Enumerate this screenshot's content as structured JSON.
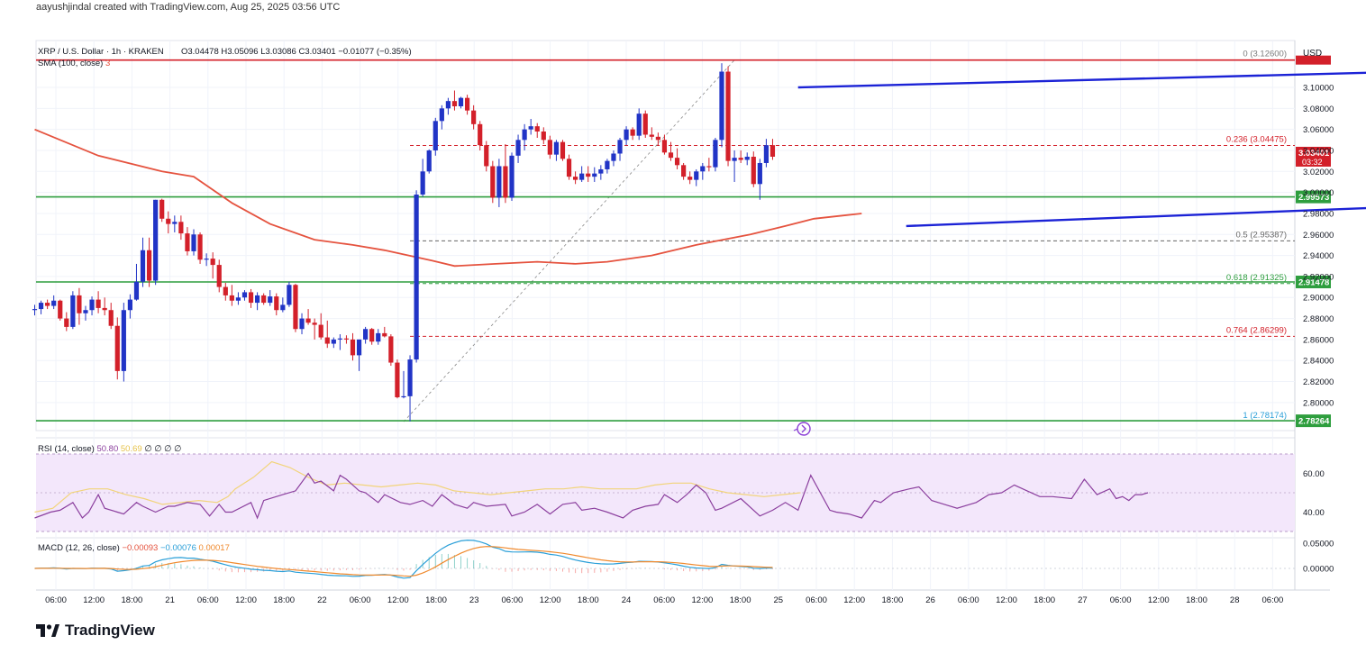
{
  "attribution": "aayushjindal created with TradingView.com, Aug 25, 2025 03:56 UTC",
  "brand": "TradingView",
  "header": {
    "symbol": "XRP / U.S. Dollar · 1h · KRAKEN",
    "open": "O3.04478",
    "high": "H3.05096",
    "low": "L3.03086",
    "close": "C3.03401",
    "change": "−0.01077 (−0.35%)",
    "sma_label": "SMA (100, close)",
    "sma_value": "3"
  },
  "currency": "USD",
  "colors": {
    "up": "#2134c6",
    "down": "#d3202a",
    "sma": "#e5533f",
    "trendline": "#1b22d6",
    "support": "#2e9e3e",
    "resistance": "#d3202a",
    "rsi": "#8b3f9e",
    "rsi_ma": "#f2d47a",
    "macd": "#2a9fd8",
    "signal": "#f08a2e"
  },
  "chart_data": {
    "type": "candlestick",
    "timeframe": "1h",
    "x_ticks": [
      "06:00",
      "12:00",
      "18:00",
      "21",
      "06:00",
      "12:00",
      "18:00",
      "22",
      "06:00",
      "12:00",
      "18:00",
      "23",
      "06:00",
      "12:00",
      "18:00",
      "24",
      "06:00",
      "12:00",
      "18:00",
      "25",
      "06:00",
      "12:00",
      "18:00",
      "26",
      "06:00",
      "12:00",
      "18:00",
      "27",
      "06:00",
      "12:00",
      "18:00",
      "28",
      "06:00"
    ],
    "y_ticks": [
      "3.10000",
      "3.08000",
      "3.06000",
      "3.04000",
      "3.02000",
      "3.00000",
      "2.98000",
      "2.96000",
      "2.94000",
      "2.92000",
      "2.90000",
      "2.88000",
      "2.86000",
      "2.84000",
      "2.82000",
      "2.80000"
    ],
    "price_range": [
      2.7733,
      3.1446
    ],
    "candles": [
      [
        2.888,
        2.893,
        2.883,
        2.889
      ],
      [
        2.889,
        2.897,
        2.884,
        2.895
      ],
      [
        2.895,
        2.898,
        2.889,
        2.892
      ],
      [
        2.892,
        2.902,
        2.889,
        2.897
      ],
      [
        2.897,
        2.898,
        2.878,
        2.88
      ],
      [
        2.88,
        2.886,
        2.868,
        2.872
      ],
      [
        2.872,
        2.906,
        2.87,
        2.902
      ],
      [
        2.902,
        2.909,
        2.874,
        2.885
      ],
      [
        2.885,
        2.892,
        2.878,
        2.888
      ],
      [
        2.888,
        2.901,
        2.883,
        2.898
      ],
      [
        2.898,
        2.906,
        2.885,
        2.89
      ],
      [
        2.89,
        2.9,
        2.883,
        2.888
      ],
      [
        2.888,
        2.895,
        2.87,
        2.873
      ],
      [
        2.873,
        2.881,
        2.822,
        2.83
      ],
      [
        2.83,
        2.895,
        2.82,
        2.888
      ],
      [
        2.888,
        2.903,
        2.88,
        2.898
      ],
      [
        2.898,
        2.932,
        2.897,
        2.915
      ],
      [
        2.915,
        2.957,
        2.91,
        2.945
      ],
      [
        2.945,
        2.957,
        2.91,
        2.916
      ],
      [
        2.916,
        2.993,
        2.912,
        2.993
      ],
      [
        2.993,
        2.994,
        2.972,
        2.975
      ],
      [
        2.975,
        2.982,
        2.961,
        2.97
      ],
      [
        2.97,
        2.978,
        2.962,
        2.972
      ],
      [
        2.972,
        2.978,
        2.955,
        2.961
      ],
      [
        2.961,
        2.967,
        2.94,
        2.944
      ],
      [
        2.944,
        2.965,
        2.94,
        2.96
      ],
      [
        2.96,
        2.962,
        2.932,
        2.936
      ],
      [
        2.936,
        2.942,
        2.93,
        2.937
      ],
      [
        2.937,
        2.943,
        2.918,
        2.931
      ],
      [
        2.931,
        2.936,
        2.905,
        2.91
      ],
      [
        2.91,
        2.914,
        2.897,
        2.902
      ],
      [
        2.902,
        2.912,
        2.892,
        2.897
      ],
      [
        2.897,
        2.905,
        2.893,
        2.9
      ],
      [
        2.9,
        2.907,
        2.897,
        2.905
      ],
      [
        2.905,
        2.908,
        2.89,
        2.895
      ],
      [
        2.895,
        2.905,
        2.888,
        2.902
      ],
      [
        2.902,
        2.904,
        2.893,
        2.895
      ],
      [
        2.895,
        2.907,
        2.892,
        2.901
      ],
      [
        2.901,
        2.904,
        2.883,
        2.888
      ],
      [
        2.888,
        2.9,
        2.886,
        2.893
      ],
      [
        2.893,
        2.915,
        2.891,
        2.912
      ],
      [
        2.912,
        2.913,
        2.867,
        2.87
      ],
      [
        2.87,
        2.885,
        2.865,
        2.88
      ],
      [
        2.88,
        2.889,
        2.874,
        2.876
      ],
      [
        2.876,
        2.88,
        2.86,
        2.874
      ],
      [
        2.874,
        2.885,
        2.86,
        2.862
      ],
      [
        2.862,
        2.878,
        2.852,
        2.856
      ],
      [
        2.856,
        2.862,
        2.852,
        2.86
      ],
      [
        2.86,
        2.865,
        2.85,
        2.861
      ],
      [
        2.861,
        2.864,
        2.856,
        2.86
      ],
      [
        2.86,
        2.866,
        2.84,
        2.845
      ],
      [
        2.845,
        2.86,
        2.83,
        2.86
      ],
      [
        2.86,
        2.872,
        2.856,
        2.87
      ],
      [
        2.87,
        2.871,
        2.855,
        2.858
      ],
      [
        2.858,
        2.87,
        2.855,
        2.866
      ],
      [
        2.866,
        2.872,
        2.862,
        2.863
      ],
      [
        2.863,
        2.865,
        2.835,
        2.838
      ],
      [
        2.838,
        2.841,
        2.804,
        2.805
      ],
      [
        2.805,
        2.83,
        2.804,
        2.806
      ],
      [
        2.806,
        2.845,
        2.782,
        2.841
      ],
      [
        2.841,
        3.002,
        2.838,
        2.998
      ],
      [
        2.998,
        3.032,
        2.996,
        3.02
      ],
      [
        3.02,
        3.041,
        3.018,
        3.04
      ],
      [
        3.04,
        3.071,
        3.035,
        3.068
      ],
      [
        3.068,
        3.083,
        3.06,
        3.08
      ],
      [
        3.08,
        3.09,
        3.074,
        3.087
      ],
      [
        3.087,
        3.097,
        3.078,
        3.082
      ],
      [
        3.082,
        3.091,
        3.08,
        3.09
      ],
      [
        3.09,
        3.093,
        3.074,
        3.078
      ],
      [
        3.078,
        3.083,
        3.06,
        3.065
      ],
      [
        3.065,
        3.068,
        3.04,
        3.045
      ],
      [
        3.045,
        3.049,
        3.02,
        3.025
      ],
      [
        3.025,
        3.03,
        2.99,
        2.995
      ],
      [
        2.995,
        3.032,
        2.986,
        3.025
      ],
      [
        3.025,
        3.046,
        2.99,
        2.995
      ],
      [
        2.995,
        3.038,
        2.992,
        3.035
      ],
      [
        3.035,
        3.055,
        3.028,
        3.05
      ],
      [
        3.05,
        3.065,
        3.04,
        3.06
      ],
      [
        3.06,
        3.07,
        3.055,
        3.063
      ],
      [
        3.063,
        3.066,
        3.052,
        3.058
      ],
      [
        3.058,
        3.062,
        3.046,
        3.05
      ],
      [
        3.05,
        3.054,
        3.032,
        3.036
      ],
      [
        3.036,
        3.05,
        3.03,
        3.048
      ],
      [
        3.048,
        3.05,
        3.03,
        3.032
      ],
      [
        3.032,
        3.036,
        3.012,
        3.015
      ],
      [
        3.015,
        3.02,
        3.008,
        3.012
      ],
      [
        3.012,
        3.025,
        3.01,
        3.018
      ],
      [
        3.018,
        3.025,
        3.01,
        3.015
      ],
      [
        3.015,
        3.024,
        3.01,
        3.018
      ],
      [
        3.018,
        3.026,
        3.012,
        3.022
      ],
      [
        3.022,
        3.032,
        3.018,
        3.03
      ],
      [
        3.03,
        3.04,
        3.025,
        3.037
      ],
      [
        3.037,
        3.052,
        3.03,
        3.05
      ],
      [
        3.05,
        3.063,
        3.045,
        3.06
      ],
      [
        3.06,
        3.062,
        3.05,
        3.054
      ],
      [
        3.054,
        3.08,
        3.05,
        3.075
      ],
      [
        3.075,
        3.078,
        3.052,
        3.055
      ],
      [
        3.055,
        3.062,
        3.05,
        3.053
      ],
      [
        3.053,
        3.057,
        3.045,
        3.05
      ],
      [
        3.05,
        3.055,
        3.036,
        3.038
      ],
      [
        3.038,
        3.048,
        3.03,
        3.033
      ],
      [
        3.033,
        3.042,
        3.022,
        3.026
      ],
      [
        3.026,
        3.028,
        3.012,
        3.015
      ],
      [
        3.015,
        3.02,
        3.008,
        3.012
      ],
      [
        3.012,
        3.022,
        3.006,
        3.02
      ],
      [
        3.02,
        3.028,
        3.012,
        3.025
      ],
      [
        3.025,
        3.033,
        3.02,
        3.024
      ],
      [
        3.024,
        3.052,
        3.02,
        3.05
      ],
      [
        3.05,
        3.123,
        3.043,
        3.115
      ],
      [
        3.115,
        3.12,
        3.025,
        3.03
      ],
      [
        3.03,
        3.04,
        3.01,
        3.033
      ],
      [
        3.033,
        3.04,
        3.028,
        3.031
      ],
      [
        3.031,
        3.038,
        3.026,
        3.034
      ],
      [
        3.034,
        3.039,
        3.005,
        3.008
      ],
      [
        3.008,
        3.032,
        2.993,
        3.028
      ],
      [
        3.028,
        3.051,
        3.024,
        3.045
      ],
      [
        3.045,
        3.051,
        3.031,
        3.034
      ]
    ],
    "sma": [
      [
        0,
        3.06
      ],
      [
        20,
        3.035
      ],
      [
        40,
        3.02
      ],
      [
        50,
        3.015
      ],
      [
        62,
        2.99
      ],
      [
        74,
        2.97
      ],
      [
        88,
        2.955
      ],
      [
        100,
        2.95
      ],
      [
        110,
        2.945
      ],
      [
        125,
        2.935
      ],
      [
        132,
        2.93
      ],
      [
        145,
        2.932
      ],
      [
        158,
        2.934
      ],
      [
        170,
        2.932
      ],
      [
        180,
        2.934
      ],
      [
        194,
        2.94
      ],
      [
        208,
        2.95
      ],
      [
        225,
        2.96
      ],
      [
        236,
        2.968
      ],
      [
        245,
        2.975
      ],
      [
        254,
        2.978
      ],
      [
        260,
        2.98
      ]
    ],
    "annotations": {
      "fibonacci": [
        {
          "label": "0 (3.12600)",
          "value": 3.126
        },
        {
          "label": "0.236 (3.04475)",
          "value": 3.04475
        },
        {
          "label": "0.5 (2.95387)",
          "value": 2.95387
        },
        {
          "label": "0.618 (2.91325)",
          "value": 2.91325
        },
        {
          "label": "0.764 (2.86299)",
          "value": 2.86299
        },
        {
          "label": "1 (2.78174)",
          "value": 2.78174
        }
      ],
      "horizontal_lines": [
        {
          "kind": "resistance",
          "value": 3.126,
          "label": ""
        },
        {
          "kind": "support",
          "value": 2.99573,
          "label": "2.99573"
        },
        {
          "kind": "support",
          "value": 2.91478,
          "label": "2.91478"
        },
        {
          "kind": "support",
          "value": 2.78264,
          "label": "2.78264"
        }
      ],
      "price_tag": {
        "value": 3.03401,
        "label": "3.03401",
        "countdown": "03:32"
      },
      "channel": [
        {
          "from": [
            120,
            3.1
          ],
          "to": [
            236,
            3.118
          ]
        },
        {
          "from": [
            137,
            2.968
          ],
          "to": [
            243,
            2.993
          ]
        }
      ]
    }
  },
  "rsi": {
    "label": "RSI (14, close)",
    "values_text": [
      "50.80",
      "50.69",
      "∅",
      "∅",
      "∅",
      "∅"
    ],
    "y_ticks": [
      "60.00",
      "40.00"
    ],
    "band": [
      30,
      70
    ],
    "mid": 50,
    "series": [
      [
        0,
        37
      ],
      [
        5,
        40
      ],
      [
        8,
        41
      ],
      [
        12,
        45
      ],
      [
        15,
        37
      ],
      [
        17,
        40
      ],
      [
        20,
        49
      ],
      [
        22,
        42
      ],
      [
        26,
        40
      ],
      [
        28,
        39
      ],
      [
        32,
        45
      ],
      [
        34,
        43
      ],
      [
        38,
        40
      ],
      [
        42,
        43
      ],
      [
        44,
        43
      ],
      [
        48,
        45
      ],
      [
        52,
        44
      ],
      [
        55,
        38
      ],
      [
        58,
        44
      ],
      [
        60,
        40
      ],
      [
        62,
        40
      ],
      [
        68,
        45
      ],
      [
        70,
        37
      ],
      [
        72,
        46
      ],
      [
        78,
        49
      ],
      [
        82,
        51
      ],
      [
        86,
        60
      ],
      [
        88,
        55
      ],
      [
        90,
        56
      ],
      [
        94,
        51
      ],
      [
        96,
        59
      ],
      [
        98,
        57
      ],
      [
        102,
        51
      ],
      [
        104,
        50
      ],
      [
        108,
        45
      ],
      [
        110,
        49
      ],
      [
        115,
        45
      ],
      [
        118,
        44
      ],
      [
        122,
        46
      ],
      [
        125,
        43
      ],
      [
        128,
        49
      ],
      [
        132,
        44
      ],
      [
        136,
        42
      ],
      [
        138,
        45
      ],
      [
        142,
        43
      ],
      [
        148,
        44
      ],
      [
        150,
        38
      ],
      [
        154,
        40
      ],
      [
        158,
        44
      ],
      [
        162,
        39
      ],
      [
        166,
        44
      ],
      [
        170,
        45
      ],
      [
        172,
        41
      ],
      [
        176,
        42
      ],
      [
        180,
        40
      ],
      [
        185,
        37
      ],
      [
        188,
        41
      ],
      [
        192,
        43
      ],
      [
        196,
        44
      ],
      [
        198,
        49
      ],
      [
        202,
        45
      ],
      [
        205,
        49
      ],
      [
        208,
        54
      ],
      [
        211,
        50
      ],
      [
        214,
        41
      ],
      [
        216,
        42
      ],
      [
        222,
        47
      ],
      [
        228,
        38
      ],
      [
        232,
        41
      ],
      [
        236,
        45
      ],
      [
        240,
        41
      ],
      [
        244,
        59
      ],
      [
        250,
        41
      ],
      [
        252,
        40
      ],
      [
        256,
        39
      ],
      [
        260,
        37
      ],
      [
        264,
        46
      ],
      [
        266,
        45
      ],
      [
        270,
        50
      ],
      [
        275,
        52
      ],
      [
        278,
        53
      ],
      [
        282,
        46
      ],
      [
        286,
        44
      ],
      [
        290,
        42
      ],
      [
        294,
        44
      ],
      [
        296,
        45
      ],
      [
        300,
        49
      ],
      [
        304,
        50
      ],
      [
        308,
        54
      ],
      [
        312,
        51
      ],
      [
        316,
        48
      ],
      [
        320,
        48
      ],
      [
        326,
        47
      ],
      [
        330,
        57
      ],
      [
        334,
        49
      ],
      [
        338,
        52
      ],
      [
        340,
        47
      ],
      [
        342,
        48
      ],
      [
        344,
        46
      ],
      [
        346,
        49
      ],
      [
        348,
        49
      ],
      [
        350,
        50
      ]
    ],
    "ma": [
      [
        0,
        40
      ],
      [
        20,
        42
      ],
      [
        40,
        50
      ],
      [
        60,
        52
      ],
      [
        80,
        52
      ],
      [
        100,
        49
      ],
      [
        120,
        47
      ],
      [
        140,
        44
      ],
      [
        160,
        45
      ],
      [
        180,
        46
      ],
      [
        200,
        45
      ],
      [
        212,
        48
      ],
      [
        220,
        52
      ],
      [
        240,
        58
      ],
      [
        260,
        66
      ],
      [
        280,
        63
      ],
      [
        300,
        58
      ],
      [
        320,
        54
      ],
      [
        340,
        55
      ],
      [
        360,
        54
      ],
      [
        380,
        53
      ],
      [
        400,
        54
      ],
      [
        420,
        55
      ],
      [
        440,
        54
      ],
      [
        460,
        51
      ],
      [
        480,
        50
      ],
      [
        500,
        49
      ],
      [
        520,
        50
      ],
      [
        540,
        51
      ],
      [
        560,
        52
      ],
      [
        580,
        52
      ],
      [
        600,
        53
      ],
      [
        620,
        52
      ],
      [
        640,
        52
      ],
      [
        660,
        52
      ],
      [
        680,
        54
      ],
      [
        700,
        55
      ],
      [
        720,
        55
      ],
      [
        740,
        52
      ],
      [
        760,
        50
      ],
      [
        780,
        49
      ],
      [
        800,
        48
      ],
      [
        820,
        49
      ],
      [
        840,
        50
      ]
    ]
  },
  "macd": {
    "label": "MACD (12, 26, close)",
    "values_text": [
      "−0.00093",
      "−0.00076",
      "0.00017"
    ],
    "y_ticks": [
      "0.05000",
      "0.00000"
    ]
  }
}
